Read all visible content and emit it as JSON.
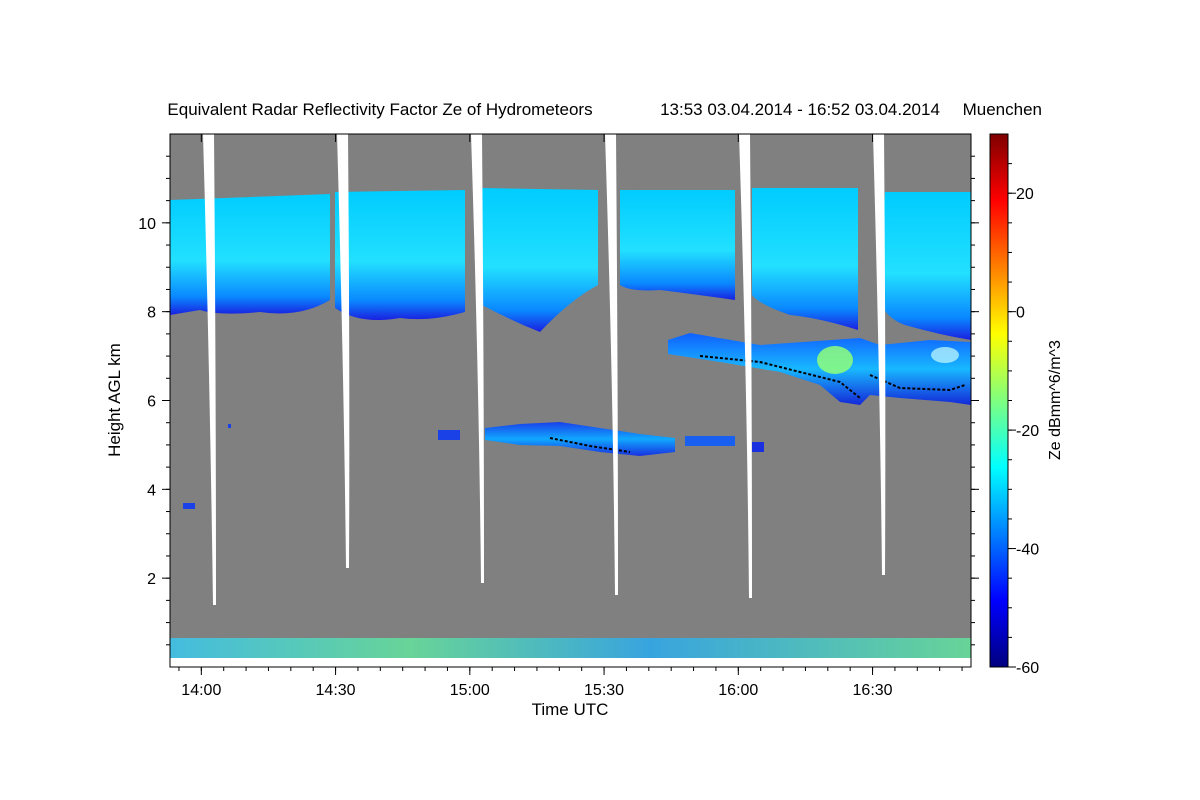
{
  "chart_data": {
    "type": "heatmap",
    "title": "Equivalent Radar Reflectivity Factor Ze of Hydrometeors",
    "time_range": "13:53 03.04.2014 - 16:52 03.04.2014",
    "location": "Muenchen",
    "xlabel": "Time UTC",
    "ylabel": "Height AGL km",
    "colorbar_label": "Ze dBmm^6/m^3",
    "x_ticks": [
      "14:00",
      "14:30",
      "15:00",
      "15:30",
      "16:00",
      "16:30"
    ],
    "x_tick_minutes": [
      7,
      37,
      67,
      97,
      127,
      157
    ],
    "x_range_minutes": [
      0,
      179
    ],
    "y_ticks": [
      2,
      4,
      6,
      8,
      10
    ],
    "y_range": [
      0,
      12
    ],
    "colorbar_ticks": [
      20,
      0,
      -20,
      -40,
      -60
    ],
    "colorbar_range": [
      -60,
      30
    ],
    "background_color": "#808080",
    "colormap": [
      "#00007f",
      "#0000ff",
      "#007fff",
      "#00ffff",
      "#7fff7f",
      "#ffff00",
      "#ff7f00",
      "#ff0000",
      "#7f0000"
    ],
    "layers": [
      {
        "t_start": 0,
        "t_end": 179,
        "base_km": 8.0,
        "top_km": 10.6,
        "ze_dbz": -30
      },
      {
        "t_start": 111,
        "t_end": 179,
        "base_km": 6.0,
        "top_km": 7.4,
        "ze_dbz": -32
      },
      {
        "t_start": 62,
        "t_end": 132,
        "base_km": 4.8,
        "top_km": 5.5,
        "ze_dbz": -40
      },
      {
        "t_start": 0,
        "t_end": 179,
        "base_km": 0.2,
        "top_km": 0.7,
        "ze_dbz": -20
      }
    ],
    "data_gaps_minutes": [
      8,
      38,
      68,
      98,
      128,
      158
    ]
  }
}
